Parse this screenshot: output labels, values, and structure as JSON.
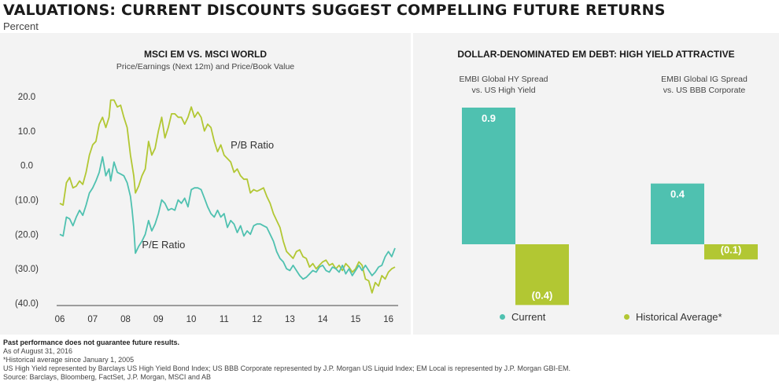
{
  "header": {
    "title": "VALUATIONS: CURRENT DISCOUNTS SUGGEST COMPELLING FUTURE RETURNS",
    "subtitle": "Percent"
  },
  "colors": {
    "teal": "#4fc1b0",
    "green": "#b2c733",
    "panel": "#f3f3f3"
  },
  "chart_data": [
    {
      "type": "line",
      "title": "MSCI EM VS. MSCI WORLD",
      "subtitle": "Price/Earnings (Next 12m) and Price/Book Value",
      "xlim": [
        2006,
        2016.2
      ],
      "ylim": [
        -40,
        25
      ],
      "yticks": [
        20,
        10,
        0,
        -10,
        -20,
        -30,
        -40
      ],
      "ytick_labels": [
        "20.0",
        "10.0",
        "0.0",
        "(10.0)",
        "(20.0)",
        "(30.0)",
        "(40.0)"
      ],
      "xticks": [
        2006,
        2007,
        2008,
        2009,
        2010,
        2011,
        2012,
        2013,
        2014,
        2015,
        2016
      ],
      "xtick_labels": [
        "06",
        "07",
        "08",
        "09",
        "10",
        "11",
        "12",
        "13",
        "14",
        "15",
        "16"
      ],
      "series": [
        {
          "name": "P/B Ratio",
          "color": "#b2c733",
          "points": [
            [
              2006.0,
              -11
            ],
            [
              2006.1,
              -11.5
            ],
            [
              2006.2,
              -5
            ],
            [
              2006.3,
              -3.5
            ],
            [
              2006.4,
              -6.5
            ],
            [
              2006.5,
              -6
            ],
            [
              2006.6,
              -4.5
            ],
            [
              2006.7,
              -5.5
            ],
            [
              2006.8,
              -2
            ],
            [
              2006.9,
              3
            ],
            [
              2007.0,
              6
            ],
            [
              2007.1,
              7
            ],
            [
              2007.2,
              12
            ],
            [
              2007.3,
              14
            ],
            [
              2007.4,
              11
            ],
            [
              2007.5,
              14
            ],
            [
              2007.55,
              19
            ],
            [
              2007.65,
              19
            ],
            [
              2007.75,
              17
            ],
            [
              2007.85,
              17.5
            ],
            [
              2007.95,
              14
            ],
            [
              2008.05,
              11
            ],
            [
              2008.15,
              3
            ],
            [
              2008.25,
              -3
            ],
            [
              2008.3,
              -8
            ],
            [
              2008.4,
              -6
            ],
            [
              2008.5,
              -3
            ],
            [
              2008.6,
              -1
            ],
            [
              2008.7,
              7
            ],
            [
              2008.8,
              3
            ],
            [
              2008.9,
              5
            ],
            [
              2009.0,
              10
            ],
            [
              2009.1,
              14
            ],
            [
              2009.2,
              8
            ],
            [
              2009.3,
              11
            ],
            [
              2009.4,
              15
            ],
            [
              2009.5,
              15
            ],
            [
              2009.6,
              14
            ],
            [
              2009.7,
              14
            ],
            [
              2009.8,
              12
            ],
            [
              2009.9,
              14
            ],
            [
              2010.0,
              17
            ],
            [
              2010.1,
              14
            ],
            [
              2010.2,
              15.5
            ],
            [
              2010.3,
              14
            ],
            [
              2010.4,
              10
            ],
            [
              2010.5,
              12
            ],
            [
              2010.6,
              11
            ],
            [
              2010.7,
              7
            ],
            [
              2010.8,
              4
            ],
            [
              2010.9,
              6
            ],
            [
              2011.0,
              3
            ],
            [
              2011.1,
              2
            ],
            [
              2011.2,
              1
            ],
            [
              2011.3,
              -2
            ],
            [
              2011.4,
              -1
            ],
            [
              2011.5,
              -3
            ],
            [
              2011.6,
              -4
            ],
            [
              2011.7,
              -4
            ],
            [
              2011.8,
              -8
            ],
            [
              2011.9,
              -7
            ],
            [
              2012.0,
              -7.5
            ],
            [
              2012.1,
              -7
            ],
            [
              2012.2,
              -6.5
            ],
            [
              2012.3,
              -9
            ],
            [
              2012.4,
              -11
            ],
            [
              2012.5,
              -14
            ],
            [
              2012.6,
              -16
            ],
            [
              2012.7,
              -18
            ],
            [
              2012.8,
              -22
            ],
            [
              2012.9,
              -25
            ],
            [
              2013.0,
              -26
            ],
            [
              2013.1,
              -27
            ],
            [
              2013.2,
              -25
            ],
            [
              2013.3,
              -24.5
            ],
            [
              2013.4,
              -26.5
            ],
            [
              2013.5,
              -27
            ],
            [
              2013.6,
              -29.5
            ],
            [
              2013.7,
              -28.5
            ],
            [
              2013.8,
              -30
            ],
            [
              2013.9,
              -29
            ],
            [
              2014.0,
              -28
            ],
            [
              2014.1,
              -27.5
            ],
            [
              2014.2,
              -29
            ],
            [
              2014.3,
              -28.5
            ],
            [
              2014.4,
              -30
            ],
            [
              2014.5,
              -29
            ],
            [
              2014.6,
              -30.5
            ],
            [
              2014.7,
              -28.5
            ],
            [
              2014.8,
              -29.5
            ],
            [
              2014.9,
              -31
            ],
            [
              2015.0,
              -30
            ],
            [
              2015.1,
              -28
            ],
            [
              2015.2,
              -29
            ],
            [
              2015.3,
              -33
            ],
            [
              2015.4,
              -33.5
            ],
            [
              2015.5,
              -37
            ],
            [
              2015.6,
              -34
            ],
            [
              2015.7,
              -35
            ],
            [
              2015.8,
              -32
            ],
            [
              2015.9,
              -33
            ],
            [
              2016.0,
              -31
            ],
            [
              2016.1,
              -30
            ],
            [
              2016.2,
              -29.5
            ]
          ]
        },
        {
          "name": "P/E Ratio",
          "color": "#4fc1b0",
          "points": [
            [
              2006.0,
              -20
            ],
            [
              2006.1,
              -20.5
            ],
            [
              2006.2,
              -15
            ],
            [
              2006.3,
              -15.5
            ],
            [
              2006.4,
              -17.5
            ],
            [
              2006.5,
              -15
            ],
            [
              2006.6,
              -13
            ],
            [
              2006.7,
              -14.5
            ],
            [
              2006.8,
              -11.5
            ],
            [
              2006.9,
              -8
            ],
            [
              2007.0,
              -6.5
            ],
            [
              2007.1,
              -4.5
            ],
            [
              2007.2,
              -2
            ],
            [
              2007.3,
              2.5
            ],
            [
              2007.4,
              -3
            ],
            [
              2007.5,
              -1
            ],
            [
              2007.55,
              -4.5
            ],
            [
              2007.65,
              1
            ],
            [
              2007.75,
              -2
            ],
            [
              2007.85,
              -2.5
            ],
            [
              2007.95,
              -3
            ],
            [
              2008.05,
              -5
            ],
            [
              2008.15,
              -9
            ],
            [
              2008.2,
              -13
            ],
            [
              2008.25,
              -18
            ],
            [
              2008.3,
              -25.5
            ],
            [
              2008.4,
              -23.5
            ],
            [
              2008.5,
              -22
            ],
            [
              2008.6,
              -20
            ],
            [
              2008.7,
              -16
            ],
            [
              2008.8,
              -19
            ],
            [
              2008.9,
              -17
            ],
            [
              2009.0,
              -14
            ],
            [
              2009.1,
              -10
            ],
            [
              2009.2,
              -11
            ],
            [
              2009.3,
              -13
            ],
            [
              2009.4,
              -12.5
            ],
            [
              2009.5,
              -13
            ],
            [
              2009.6,
              -10
            ],
            [
              2009.7,
              -11
            ],
            [
              2009.8,
              -9.5
            ],
            [
              2009.9,
              -12
            ],
            [
              2010.0,
              -7
            ],
            [
              2010.1,
              -6.5
            ],
            [
              2010.2,
              -6.5
            ],
            [
              2010.3,
              -7
            ],
            [
              2010.4,
              -9.5
            ],
            [
              2010.5,
              -12
            ],
            [
              2010.6,
              -14
            ],
            [
              2010.7,
              -15
            ],
            [
              2010.8,
              -13
            ],
            [
              2010.9,
              -15
            ],
            [
              2011.0,
              -14
            ],
            [
              2011.1,
              -18
            ],
            [
              2011.2,
              -16
            ],
            [
              2011.3,
              -17
            ],
            [
              2011.4,
              -19.5
            ],
            [
              2011.5,
              -17.5
            ],
            [
              2011.6,
              -20.5
            ],
            [
              2011.7,
              -19
            ],
            [
              2011.8,
              -20
            ],
            [
              2011.9,
              -17.5
            ],
            [
              2012.0,
              -17
            ],
            [
              2012.1,
              -17
            ],
            [
              2012.2,
              -17.5
            ],
            [
              2012.3,
              -18
            ],
            [
              2012.4,
              -20
            ],
            [
              2012.5,
              -22
            ],
            [
              2012.6,
              -25
            ],
            [
              2012.7,
              -27
            ],
            [
              2012.8,
              -28
            ],
            [
              2012.9,
              -30
            ],
            [
              2013.0,
              -30.5
            ],
            [
              2013.1,
              -29
            ],
            [
              2013.2,
              -30.5
            ],
            [
              2013.3,
              -32
            ],
            [
              2013.4,
              -33
            ],
            [
              2013.5,
              -32.5
            ],
            [
              2013.6,
              -31.5
            ],
            [
              2013.7,
              -30.5
            ],
            [
              2013.8,
              -31
            ],
            [
              2013.9,
              -29.5
            ],
            [
              2014.0,
              -29
            ],
            [
              2014.1,
              -30.5
            ],
            [
              2014.2,
              -31
            ],
            [
              2014.3,
              -29.5
            ],
            [
              2014.4,
              -30
            ],
            [
              2014.5,
              -31
            ],
            [
              2014.6,
              -29
            ],
            [
              2014.7,
              -31.5
            ],
            [
              2014.8,
              -30
            ],
            [
              2014.9,
              -32
            ],
            [
              2015.0,
              -30.5
            ],
            [
              2015.1,
              -29
            ],
            [
              2015.2,
              -30.5
            ],
            [
              2015.3,
              -29
            ],
            [
              2015.4,
              -30.5
            ],
            [
              2015.5,
              -32
            ],
            [
              2015.6,
              -31
            ],
            [
              2015.7,
              -29.5
            ],
            [
              2015.8,
              -29
            ],
            [
              2015.9,
              -26.5
            ],
            [
              2016.0,
              -25
            ],
            [
              2016.1,
              -26.5
            ],
            [
              2016.2,
              -24
            ]
          ],
          "label": "P/E Ratio"
        }
      ],
      "annotations": [
        {
          "text": "P/B Ratio",
          "x": 2011.2,
          "y": 5
        },
        {
          "text": "P/E Ratio",
          "x": 2008.5,
          "y": -24
        }
      ],
      "grid": false
    },
    {
      "type": "bar",
      "title": "DOLLAR-DENOMINATED EM DEBT: HIGH YIELD ATTRACTIVE",
      "categories": [
        "EMBI Global HY Spread\nvs. US High Yield",
        "EMBI Global IG Spread\nvs. US BBB Corporate"
      ],
      "ylim": [
        -0.4,
        0.9
      ],
      "series": [
        {
          "name": "Current",
          "color": "#4fc1b0",
          "values": [
            0.9,
            0.4
          ],
          "labels": [
            "0.9",
            "0.4"
          ]
        },
        {
          "name": "Historical Average*",
          "color": "#b2c733",
          "values": [
            -0.4,
            -0.1
          ],
          "labels": [
            "(0.4)",
            "(0.1)"
          ]
        }
      ],
      "legend": "bottom"
    }
  ],
  "right_chart": {
    "cat1_line1": "EMBI Global HY Spread",
    "cat1_line2": "vs. US High Yield",
    "cat2_line1": "EMBI Global IG Spread",
    "cat2_line2": "vs. US BBB Corporate",
    "legend_current": "Current",
    "legend_hist": "Historical Average*"
  },
  "footnotes": {
    "line1": "Past performance does not guarantee future results.",
    "line2": "As of August 31, 2016",
    "line3": "*Historical average since January 1, 2005",
    "line4": "US High Yield represented by Barclays US High Yield Bond Index; US BBB Corporate represented by J.P. Morgan US Liquid Index; EM Local is represented by J.P. Morgan GBI-EM.",
    "line5": "Source: Barclays, Bloomberg, FactSet, J.P. Morgan, MSCI and AB"
  }
}
